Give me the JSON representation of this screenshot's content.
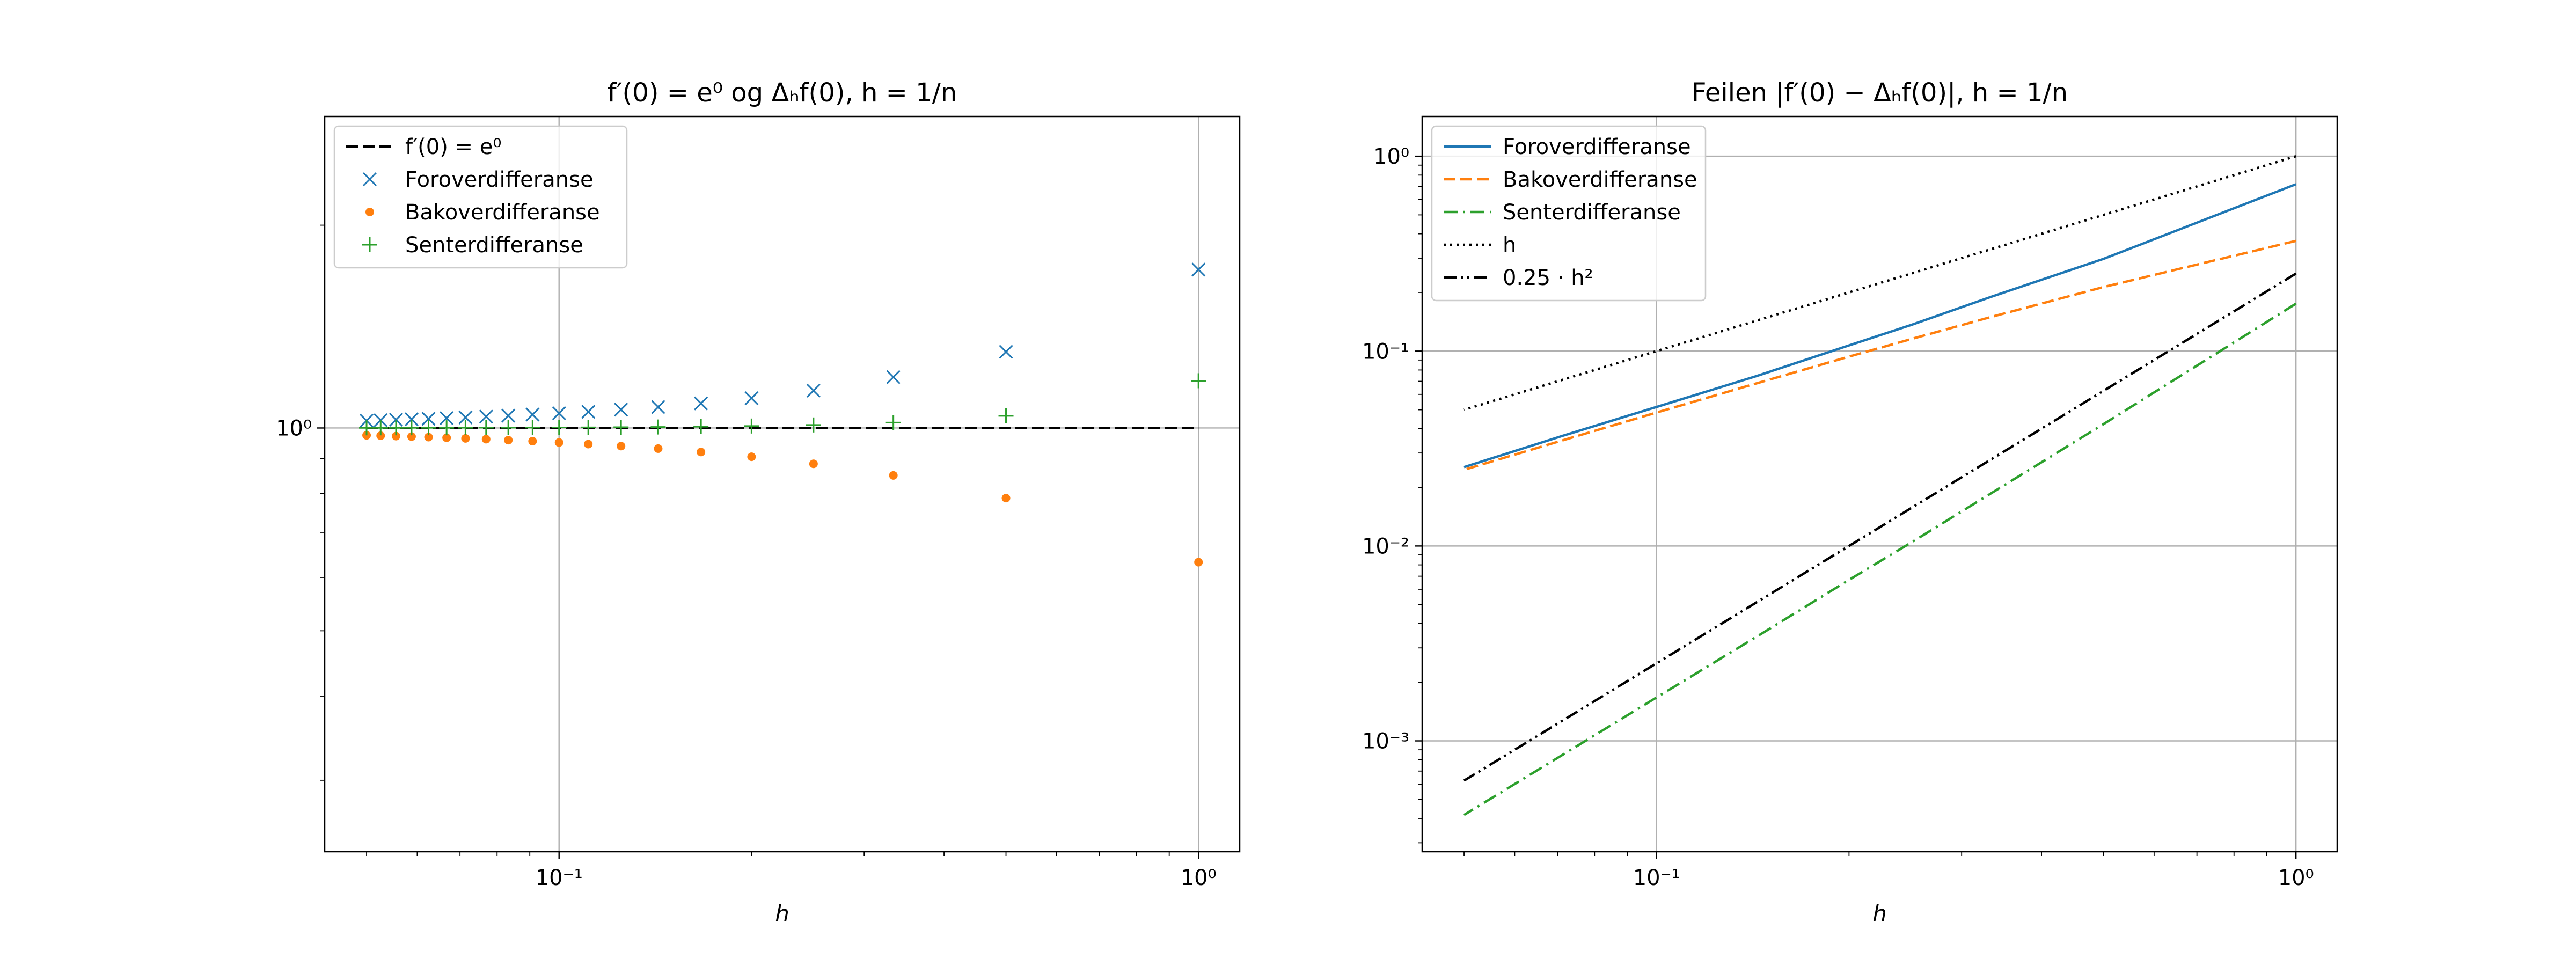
{
  "chart_data": [
    {
      "type": "scatter",
      "title": "f′(0) = e⁰ og Δₕf(0), h = 1/n",
      "xlabel": "h",
      "ylabel": "",
      "xscale": "log",
      "yscale": "log",
      "xlim": [
        0.043,
        1.16
      ],
      "ylim": [
        0.235,
        2.9
      ],
      "xticks": [
        {
          "value": 0.1,
          "label": "10⁻¹"
        },
        {
          "value": 1,
          "label": "10⁰"
        }
      ],
      "yticks": [
        {
          "value": 1,
          "label": "10⁰"
        }
      ],
      "grid": true,
      "legend_position": "top-left",
      "series": [
        {
          "name": "f′(0) = e⁰",
          "kind": "line",
          "style": "dashed",
          "color": "#000000",
          "x": [
            0.05,
            1
          ],
          "y": [
            1,
            1
          ]
        },
        {
          "name": "Foroverdifferanse",
          "kind": "marker",
          "marker": "x",
          "color": "#1f77b4",
          "x": [
            1,
            0.5,
            0.3333,
            0.25,
            0.2,
            0.1667,
            0.1429,
            0.125,
            0.1111,
            0.1,
            0.0909,
            0.0833,
            0.0769,
            0.0714,
            0.0667,
            0.0625,
            0.0588,
            0.0556,
            0.0526,
            0.05
          ],
          "y": [
            1.7183,
            1.2974,
            1.1898,
            1.1361,
            1.107,
            1.0875,
            1.0742,
            1.0647,
            1.0568,
            1.0517,
            1.0469,
            1.043,
            1.0397,
            1.0368,
            1.0344,
            1.0322,
            1.0303,
            1.0287,
            1.0271,
            1.0254
          ]
        },
        {
          "name": "Bakoverdifferanse",
          "kind": "marker",
          "marker": "dot",
          "color": "#ff7f0e",
          "x": [
            1,
            0.5,
            0.3333,
            0.25,
            0.2,
            0.1667,
            0.1429,
            0.125,
            0.1111,
            0.1,
            0.0909,
            0.0833,
            0.0769,
            0.0714,
            0.0667,
            0.0625,
            0.0588,
            0.0556,
            0.0526,
            0.05
          ],
          "y": [
            0.6321,
            0.7869,
            0.8504,
            0.8848,
            0.9063,
            0.9211,
            0.9319,
            0.94,
            0.9465,
            0.9516,
            0.9559,
            0.9594,
            0.9625,
            0.9651,
            0.9673,
            0.9693,
            0.9711,
            0.9726,
            0.974,
            0.9754
          ]
        },
        {
          "name": "Senterdifferanse",
          "kind": "marker",
          "marker": "plus",
          "color": "#2ca02c",
          "x": [
            1,
            0.5,
            0.3333,
            0.25,
            0.2,
            0.1667,
            0.1429,
            0.125,
            0.1111,
            0.1,
            0.0909,
            0.0833,
            0.0769,
            0.0714,
            0.0667,
            0.0625,
            0.0588,
            0.0556,
            0.0526,
            0.05
          ],
          "y": [
            1.1752,
            1.0422,
            1.0186,
            1.0104,
            1.0067,
            1.0046,
            1.0034,
            1.0026,
            1.0021,
            1.0017,
            1.0014,
            1.0012,
            1.001,
            1.0009,
            1.0007,
            1.0007,
            1.0006,
            1.0005,
            1.0005,
            1.0004
          ]
        }
      ]
    },
    {
      "type": "line",
      "title": "Feilen |f′(0) − Δₕf(0)|, h = 1/n",
      "xlabel": "h",
      "ylabel": "",
      "xscale": "log",
      "yscale": "log",
      "xlim": [
        0.043,
        1.16
      ],
      "ylim": [
        0.00027,
        1.6
      ],
      "xticks": [
        {
          "value": 0.1,
          "label": "10⁻¹"
        },
        {
          "value": 1,
          "label": "10⁰"
        }
      ],
      "yticks": [
        {
          "value": 1,
          "label": "10⁰"
        },
        {
          "value": 0.1,
          "label": "10⁻¹"
        },
        {
          "value": 0.01,
          "label": "10⁻²"
        },
        {
          "value": 0.001,
          "label": "10⁻³"
        }
      ],
      "grid": true,
      "legend_position": "top-left",
      "series": [
        {
          "name": "Foroverdifferanse",
          "style": "solid",
          "color": "#1f77b4",
          "x": [
            1,
            0.5,
            0.3333,
            0.25,
            0.2,
            0.1429,
            0.1,
            0.0714,
            0.05
          ],
          "y": [
            0.7183,
            0.2974,
            0.1898,
            0.1361,
            0.107,
            0.0742,
            0.0517,
            0.0368,
            0.0254
          ]
        },
        {
          "name": "Bakoverdifferanse",
          "style": "dashed",
          "color": "#ff7f0e",
          "x": [
            1,
            0.5,
            0.3333,
            0.25,
            0.2,
            0.1429,
            0.1,
            0.0714,
            0.05
          ],
          "y": [
            0.3679,
            0.2131,
            0.1496,
            0.1152,
            0.0937,
            0.0681,
            0.0484,
            0.0349,
            0.0246
          ]
        },
        {
          "name": "Senterdifferanse",
          "style": "dashdot",
          "color": "#2ca02c",
          "x": [
            1,
            0.5,
            0.3333,
            0.25,
            0.2,
            0.1429,
            0.1,
            0.0714,
            0.05
          ],
          "y": [
            0.1752,
            0.0422,
            0.0186,
            0.0104,
            0.0067,
            0.0034,
            0.00167,
            0.00085,
            0.000417
          ]
        },
        {
          "name": "h",
          "style": "dotted",
          "color": "#000000",
          "x": [
            1,
            0.05
          ],
          "y": [
            1,
            0.05
          ]
        },
        {
          "name": "0.25 · h²",
          "style": "dashdotdot",
          "color": "#000000",
          "x": [
            1,
            0.05
          ],
          "y": [
            0.25,
            0.000625
          ]
        }
      ]
    }
  ]
}
